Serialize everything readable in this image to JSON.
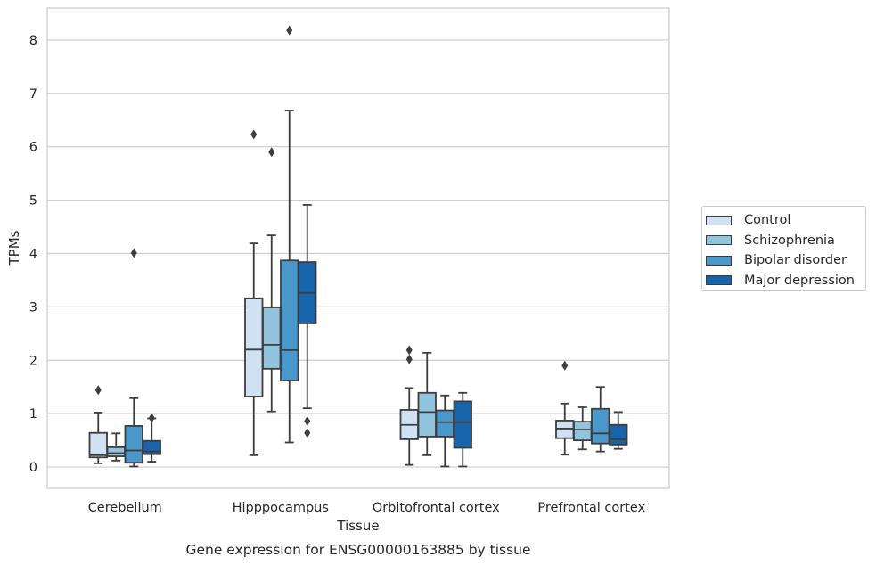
{
  "chart_data": {
    "type": "box",
    "title": "Gene expression for ENSG00000163885 by tissue",
    "xlabel": "Tissue",
    "ylabel": "TPMs",
    "ylim": [
      -0.4,
      8.6
    ],
    "yticks": [
      0,
      1,
      2,
      3,
      4,
      5,
      6,
      7,
      8
    ],
    "grid": "horizontal",
    "legend_position": "right",
    "categories": [
      "Cerebellum",
      "Hipppocampus",
      "Orbitofrontal cortex",
      "Prefrontal cortex"
    ],
    "series": [
      {
        "name": "Control",
        "color": "#cfe1f2",
        "boxes": [
          {
            "whislo": 0.07,
            "q1": 0.18,
            "med": 0.22,
            "q3": 0.64,
            "whishi": 1.02,
            "fliers": [
              1.44
            ]
          },
          {
            "whislo": 0.22,
            "q1": 1.32,
            "med": 2.2,
            "q3": 3.16,
            "whishi": 4.19,
            "fliers": [
              6.23
            ]
          },
          {
            "whislo": 0.04,
            "q1": 0.52,
            "med": 0.79,
            "q3": 1.07,
            "whishi": 1.48,
            "fliers": [
              2.02,
              2.19
            ]
          },
          {
            "whislo": 0.23,
            "q1": 0.54,
            "med": 0.72,
            "q3": 0.87,
            "whishi": 1.19,
            "fliers": [
              1.9
            ]
          }
        ]
      },
      {
        "name": "Schizophrenia",
        "color": "#93c4de",
        "boxes": [
          {
            "whislo": 0.12,
            "q1": 0.2,
            "med": 0.26,
            "q3": 0.37,
            "whishi": 0.63,
            "fliers": []
          },
          {
            "whislo": 1.04,
            "q1": 1.84,
            "med": 2.29,
            "q3": 2.99,
            "whishi": 4.34,
            "fliers": [
              5.9
            ]
          },
          {
            "whislo": 0.22,
            "q1": 0.57,
            "med": 1.03,
            "q3": 1.39,
            "whishi": 2.14,
            "fliers": []
          },
          {
            "whislo": 0.33,
            "q1": 0.5,
            "med": 0.7,
            "q3": 0.85,
            "whishi": 1.12,
            "fliers": []
          }
        ]
      },
      {
        "name": "Bipolar disorder",
        "color": "#4a98c9",
        "boxes": [
          {
            "whislo": 0.01,
            "q1": 0.08,
            "med": 0.31,
            "q3": 0.77,
            "whishi": 1.29,
            "fliers": [
              4.01
            ]
          },
          {
            "whislo": 0.46,
            "q1": 1.62,
            "med": 2.19,
            "q3": 3.87,
            "whishi": 6.68,
            "fliers": [
              8.18
            ]
          },
          {
            "whislo": 0.01,
            "q1": 0.57,
            "med": 0.84,
            "q3": 1.06,
            "whishi": 1.34,
            "fliers": []
          },
          {
            "whislo": 0.29,
            "q1": 0.44,
            "med": 0.63,
            "q3": 1.09,
            "whishi": 1.5,
            "fliers": []
          }
        ]
      },
      {
        "name": "Major depression",
        "color": "#1764ab",
        "boxes": [
          {
            "whislo": 0.1,
            "q1": 0.24,
            "med": 0.29,
            "q3": 0.49,
            "whishi": 0.91,
            "fliers": [
              0.92
            ]
          },
          {
            "whislo": 1.1,
            "q1": 2.69,
            "med": 3.26,
            "q3": 3.84,
            "whishi": 4.91,
            "fliers": [
              0.64,
              0.86
            ]
          },
          {
            "whislo": 0.01,
            "q1": 0.36,
            "med": 0.84,
            "q3": 1.23,
            "whishi": 1.39,
            "fliers": []
          },
          {
            "whislo": 0.34,
            "q1": 0.42,
            "med": 0.52,
            "q3": 0.79,
            "whishi": 1.03,
            "fliers": []
          }
        ]
      }
    ]
  }
}
